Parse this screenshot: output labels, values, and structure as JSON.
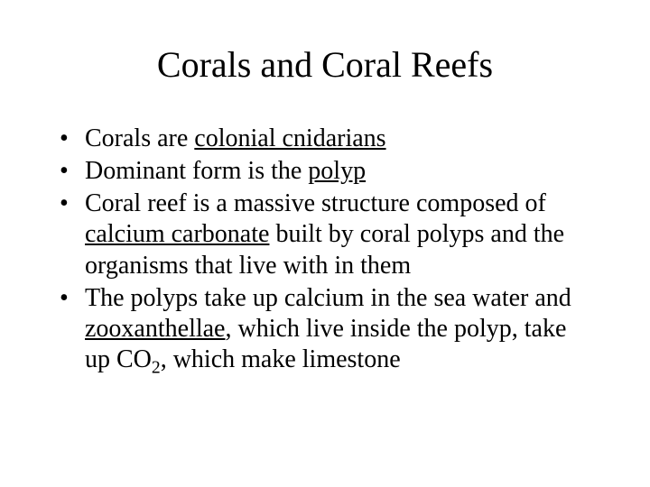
{
  "slide": {
    "title": "Corals and Coral Reefs",
    "bullets": [
      {
        "pre": "Corals are ",
        "u1": "colonial cnidarians",
        "post": ""
      },
      {
        "pre": "Dominant form is the ",
        "u1": "polyp",
        "post": ""
      },
      {
        "pre": "Coral reef is a massive structure composed of ",
        "u1": "calcium carbonate",
        "post": " built by coral polyps and the organisms that live with in them"
      },
      {
        "pre": "The polyps take up calcium in the sea water and ",
        "u1": "zooxanthellae",
        "mid": ", which live inside the polyp, take up CO",
        "sub": "2",
        "post": ", which make limestone"
      }
    ]
  },
  "style": {
    "background_color": "#ffffff",
    "text_color": "#000000",
    "font_family": "Times New Roman",
    "title_fontsize": 40,
    "body_fontsize": 28
  }
}
